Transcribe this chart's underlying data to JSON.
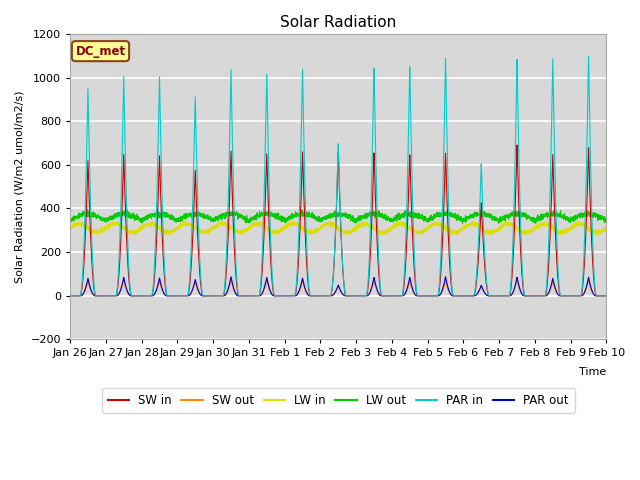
{
  "title": "Solar Radiation",
  "ylabel": "Solar Radiation (W/m2 umol/m2/s)",
  "xlabel": "Time",
  "ylim": [
    -200,
    1200
  ],
  "xlim": [
    0,
    15
  ],
  "plot_bg_color": "#d8d8d8",
  "fig_bg_color": "#ffffff",
  "label_box_text": "DC_met",
  "label_box_facecolor": "#ffff99",
  "label_box_edgecolor": "#8b4513",
  "xtick_labels": [
    "Jan 26",
    "Jan 27",
    "Jan 28",
    "Jan 29",
    "Jan 30",
    "Jan 31",
    "Feb 1",
    "Feb 2",
    "Feb 3",
    "Feb 4",
    "Feb 5",
    "Feb 6",
    "Feb 7",
    "Feb 8",
    "Feb 9",
    "Feb 10"
  ],
  "series": {
    "SW_in": {
      "color": "#cc0000",
      "label": "SW in"
    },
    "SW_out": {
      "color": "#ff8800",
      "label": "SW out"
    },
    "LW_in": {
      "color": "#dddd00",
      "label": "LW in"
    },
    "LW_out": {
      "color": "#00cc00",
      "label": "LW out"
    },
    "PAR_in": {
      "color": "#00cccc",
      "label": "PAR in"
    },
    "PAR_out": {
      "color": "#0000cc",
      "label": "PAR out"
    }
  },
  "sw_in_peaks": [
    620,
    650,
    645,
    580,
    670,
    660,
    670,
    670,
    665,
    655,
    660,
    430,
    695,
    650,
    680
  ],
  "par_in_peaks": [
    950,
    1010,
    1010,
    920,
    1050,
    1030,
    1055,
    710,
    1060,
    1065,
    1100,
    610,
    1090,
    1090,
    1100
  ],
  "sw_out_peaks": [
    65,
    70,
    68,
    62,
    72,
    70,
    68,
    45,
    68,
    66,
    68,
    45,
    72,
    65,
    70
  ],
  "par_out_peaks": [
    80,
    85,
    82,
    75,
    88,
    85,
    82,
    50,
    85,
    85,
    88,
    48,
    85,
    80,
    85
  ],
  "lw_in_base": 310,
  "lw_out_base": 345
}
